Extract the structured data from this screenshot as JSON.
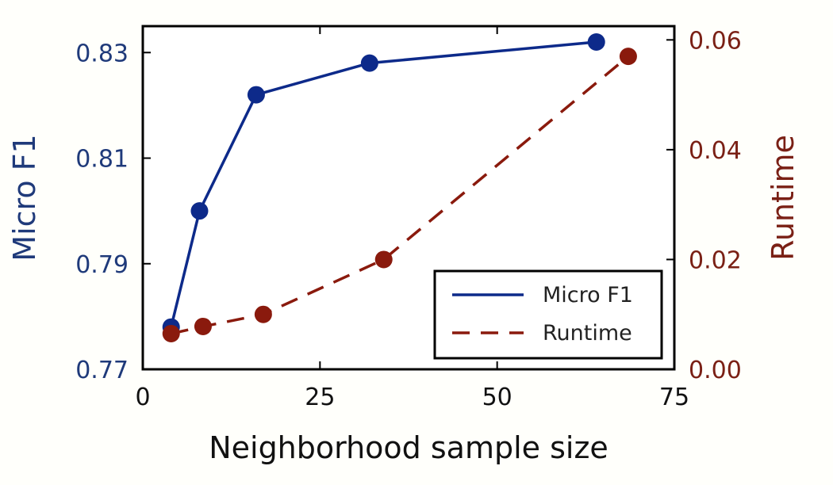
{
  "chart_data": {
    "type": "line",
    "xlabel": "Neighborhood sample size",
    "ylabel_left": "Micro F1",
    "ylabel_right": "Runtime",
    "xlim": [
      0,
      75
    ],
    "ylim_left": [
      0.77,
      0.835
    ],
    "ylim_right": [
      0,
      0.0625
    ],
    "x_ticks": [
      0,
      25,
      50,
      75
    ],
    "x_tick_labels": [
      "0",
      "25",
      "50",
      "75"
    ],
    "y_left_ticks": [
      0.77,
      0.79,
      0.81,
      0.83
    ],
    "y_left_tick_labels": [
      "0.77",
      "0.79",
      "0.81",
      "0.83"
    ],
    "y_right_ticks": [
      0,
      0.02,
      0.04,
      0.06
    ],
    "y_right_tick_labels": [
      "0.00",
      "0.02",
      "0.04",
      "0.06"
    ],
    "grid": false,
    "legend_position": "bottom-right",
    "colors": {
      "left_axis": "#1f3a7a",
      "right_axis": "#7a2015"
    },
    "series": [
      {
        "name": "Micro F1",
        "axis": "left",
        "style": "solid",
        "color": "#0d2a8a",
        "x": [
          4,
          8,
          16,
          32,
          64
        ],
        "y": [
          0.778,
          0.8,
          0.822,
          0.828,
          0.832
        ]
      },
      {
        "name": "Runtime",
        "axis": "right",
        "style": "dashed",
        "color": "#8a1a0d",
        "x": [
          4,
          8.5,
          17,
          34,
          68.5
        ],
        "y": [
          0.0065,
          0.0078,
          0.01,
          0.02,
          0.057
        ]
      }
    ]
  }
}
